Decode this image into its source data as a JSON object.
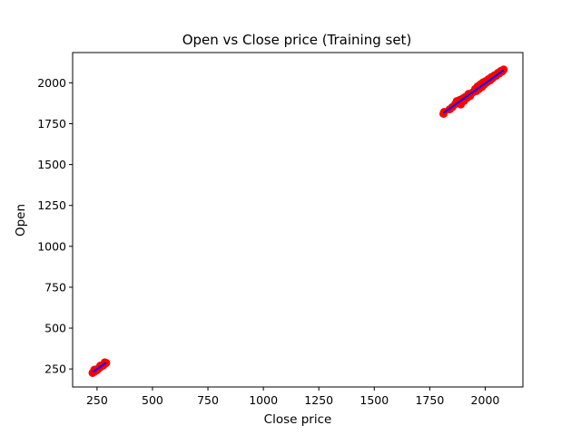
{
  "chart_data": {
    "type": "scatter",
    "title": "Open vs Close price (Training set)",
    "xlabel": "Close price",
    "ylabel": "Open",
    "xlim": [
      140,
      2170
    ],
    "ylim": [
      140,
      2185
    ],
    "xticks": [
      250,
      500,
      750,
      1000,
      1250,
      1500,
      1750,
      2000
    ],
    "yticks": [
      250,
      500,
      750,
      1000,
      1250,
      1500,
      1750,
      2000
    ],
    "grid": false,
    "series": [
      {
        "kind": "scatter",
        "color": "#ff0000",
        "points": [
          [
            230,
            226
          ],
          [
            236,
            232
          ],
          [
            242,
            238
          ],
          [
            247,
            244
          ],
          [
            252,
            248
          ],
          [
            257,
            253
          ],
          [
            262,
            259
          ],
          [
            267,
            264
          ],
          [
            272,
            269
          ],
          [
            277,
            274
          ],
          [
            282,
            279
          ],
          [
            287,
            283
          ],
          [
            291,
            287
          ],
          [
            238,
            245
          ],
          [
            250,
            243
          ],
          [
            265,
            270
          ],
          [
            278,
            272
          ],
          [
            285,
            290
          ],
          [
            1812,
            1811
          ],
          [
            1815,
            1822
          ],
          [
            1840,
            1838
          ],
          [
            1852,
            1852
          ],
          [
            1865,
            1870
          ],
          [
            1872,
            1888
          ],
          [
            1880,
            1876
          ],
          [
            1885,
            1895
          ],
          [
            1890,
            1868
          ],
          [
            1895,
            1882
          ],
          [
            1900,
            1905
          ],
          [
            1905,
            1890
          ],
          [
            1912,
            1915
          ],
          [
            1918,
            1908
          ],
          [
            1925,
            1932
          ],
          [
            1932,
            1920
          ],
          [
            1940,
            1938
          ],
          [
            1948,
            1945
          ],
          [
            1955,
            1962
          ],
          [
            1960,
            1950
          ],
          [
            1966,
            1978
          ],
          [
            1972,
            1962
          ],
          [
            1978,
            1990
          ],
          [
            1985,
            1975
          ],
          [
            1990,
            2002
          ],
          [
            1996,
            1990
          ],
          [
            2002,
            2010
          ],
          [
            2008,
            2004
          ],
          [
            2015,
            2022
          ],
          [
            2022,
            2015
          ],
          [
            2028,
            2035
          ],
          [
            2035,
            2030
          ],
          [
            2042,
            2046
          ],
          [
            2050,
            2044
          ],
          [
            2057,
            2060
          ],
          [
            2064,
            2058
          ],
          [
            2070,
            2072
          ],
          [
            2077,
            2070
          ],
          [
            2083,
            2081
          ]
        ]
      },
      {
        "kind": "line",
        "color": "#0000ff",
        "points": [
          [
            230,
            231
          ],
          [
            290,
            288
          ],
          [
            1812,
            1816
          ],
          [
            2083,
            2077
          ]
        ]
      }
    ]
  }
}
